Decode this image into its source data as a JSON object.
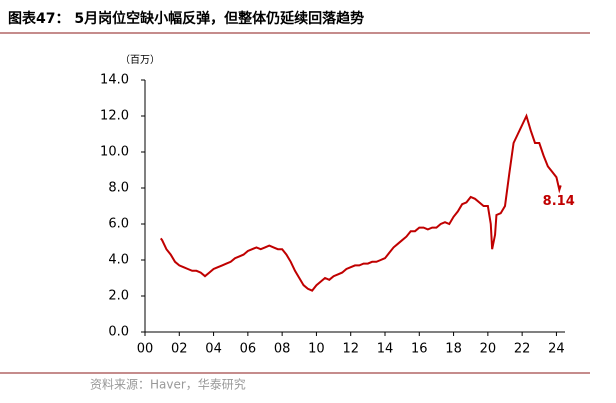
{
  "header": {
    "title": "图表47： 5月岗位空缺小幅反弹，但整体仍延续回落趋势"
  },
  "chart_data": {
    "type": "line",
    "unit_label": "（百万）",
    "x": [
      2000.92,
      2001.0,
      2001.25,
      2001.5,
      2001.75,
      2002.0,
      2002.25,
      2002.5,
      2002.75,
      2003.0,
      2003.25,
      2003.5,
      2003.75,
      2004.0,
      2004.25,
      2004.5,
      2004.75,
      2005.0,
      2005.25,
      2005.5,
      2005.75,
      2006.0,
      2006.25,
      2006.5,
      2006.75,
      2007.0,
      2007.25,
      2007.5,
      2007.75,
      2008.0,
      2008.25,
      2008.5,
      2008.75,
      2009.0,
      2009.25,
      2009.5,
      2009.75,
      2010.0,
      2010.25,
      2010.5,
      2010.75,
      2011.0,
      2011.25,
      2011.5,
      2011.75,
      2012.0,
      2012.25,
      2012.5,
      2012.75,
      2013.0,
      2013.25,
      2013.5,
      2013.75,
      2014.0,
      2014.25,
      2014.5,
      2014.75,
      2015.0,
      2015.25,
      2015.5,
      2015.75,
      2016.0,
      2016.25,
      2016.5,
      2016.75,
      2017.0,
      2017.25,
      2017.5,
      2017.75,
      2018.0,
      2018.25,
      2018.5,
      2018.75,
      2019.0,
      2019.25,
      2019.5,
      2019.75,
      2020.0,
      2020.17,
      2020.25,
      2020.42,
      2020.5,
      2020.75,
      2021.0,
      2021.25,
      2021.5,
      2021.75,
      2022.0,
      2022.25,
      2022.5,
      2022.75,
      2023.0,
      2023.25,
      2023.5,
      2023.75,
      2024.0,
      2024.17,
      2024.25
    ],
    "series": [
      {
        "color": "#c00000",
        "values": [
          5.2,
          5.1,
          4.6,
          4.3,
          3.9,
          3.7,
          3.6,
          3.5,
          3.4,
          3.4,
          3.3,
          3.1,
          3.3,
          3.5,
          3.6,
          3.7,
          3.8,
          3.9,
          4.1,
          4.2,
          4.3,
          4.5,
          4.6,
          4.7,
          4.6,
          4.7,
          4.8,
          4.7,
          4.6,
          4.6,
          4.3,
          3.9,
          3.4,
          3.0,
          2.6,
          2.4,
          2.3,
          2.6,
          2.8,
          3.0,
          2.9,
          3.1,
          3.2,
          3.3,
          3.5,
          3.6,
          3.7,
          3.7,
          3.8,
          3.8,
          3.9,
          3.9,
          4.0,
          4.1,
          4.4,
          4.7,
          4.9,
          5.1,
          5.3,
          5.6,
          5.6,
          5.8,
          5.8,
          5.7,
          5.8,
          5.8,
          6.0,
          6.1,
          6.0,
          6.4,
          6.7,
          7.1,
          7.2,
          7.5,
          7.4,
          7.2,
          7.0,
          7.0,
          6.0,
          4.6,
          5.4,
          6.5,
          6.6,
          7.0,
          8.8,
          10.5,
          11.0,
          11.5,
          12.0,
          11.2,
          10.5,
          10.5,
          9.8,
          9.2,
          8.9,
          8.6,
          7.9,
          8.14
        ],
        "value_labels": [
          null,
          null,
          null,
          null,
          null,
          null,
          null,
          null,
          null,
          null,
          null,
          null,
          null,
          null,
          null,
          null,
          null,
          null,
          null,
          null,
          null,
          null,
          null,
          null,
          null,
          null,
          null,
          null,
          null,
          null,
          null,
          null,
          null,
          null,
          null,
          null,
          null,
          null,
          null,
          null,
          null,
          null,
          null,
          null,
          null,
          null,
          null,
          null,
          null,
          null,
          null,
          null,
          null,
          null,
          null,
          null,
          null,
          null,
          null,
          null,
          null,
          null,
          null,
          null,
          null,
          null,
          null,
          null,
          null,
          null,
          null,
          null,
          null,
          null,
          null,
          null,
          null,
          null,
          null,
          null,
          null,
          null,
          null,
          null,
          null,
          null,
          null,
          null,
          null,
          null,
          null,
          null,
          null,
          null,
          null,
          null,
          null,
          "8.14"
        ]
      }
    ],
    "xlim": [
      2000,
      2024.5
    ],
    "xticks": [
      {
        "value": 2000,
        "label": "00"
      },
      {
        "value": 2002,
        "label": "02"
      },
      {
        "value": 2004,
        "label": "04"
      },
      {
        "value": 2006,
        "label": "06"
      },
      {
        "value": 2008,
        "label": "08"
      },
      {
        "value": 2010,
        "label": "10"
      },
      {
        "value": 2012,
        "label": "12"
      },
      {
        "value": 2014,
        "label": "14"
      },
      {
        "value": 2016,
        "label": "16"
      },
      {
        "value": 2018,
        "label": "18"
      },
      {
        "value": 2020,
        "label": "20"
      },
      {
        "value": 2022,
        "label": "22"
      },
      {
        "value": 2024,
        "label": "24"
      }
    ],
    "ylim": [
      0,
      14
    ],
    "yticks": [
      {
        "value": 0,
        "label": "0.0"
      },
      {
        "value": 2,
        "label": "2.0"
      },
      {
        "value": 4,
        "label": "4.0"
      },
      {
        "value": 6,
        "label": "6.0"
      },
      {
        "value": 8,
        "label": "8.0"
      },
      {
        "value": 10,
        "label": "10.0"
      },
      {
        "value": 12,
        "label": "12.0"
      },
      {
        "value": 14,
        "label": "14.0"
      }
    ],
    "grid": false
  },
  "footer": {
    "source": "资料来源：Haver，华泰研究"
  }
}
